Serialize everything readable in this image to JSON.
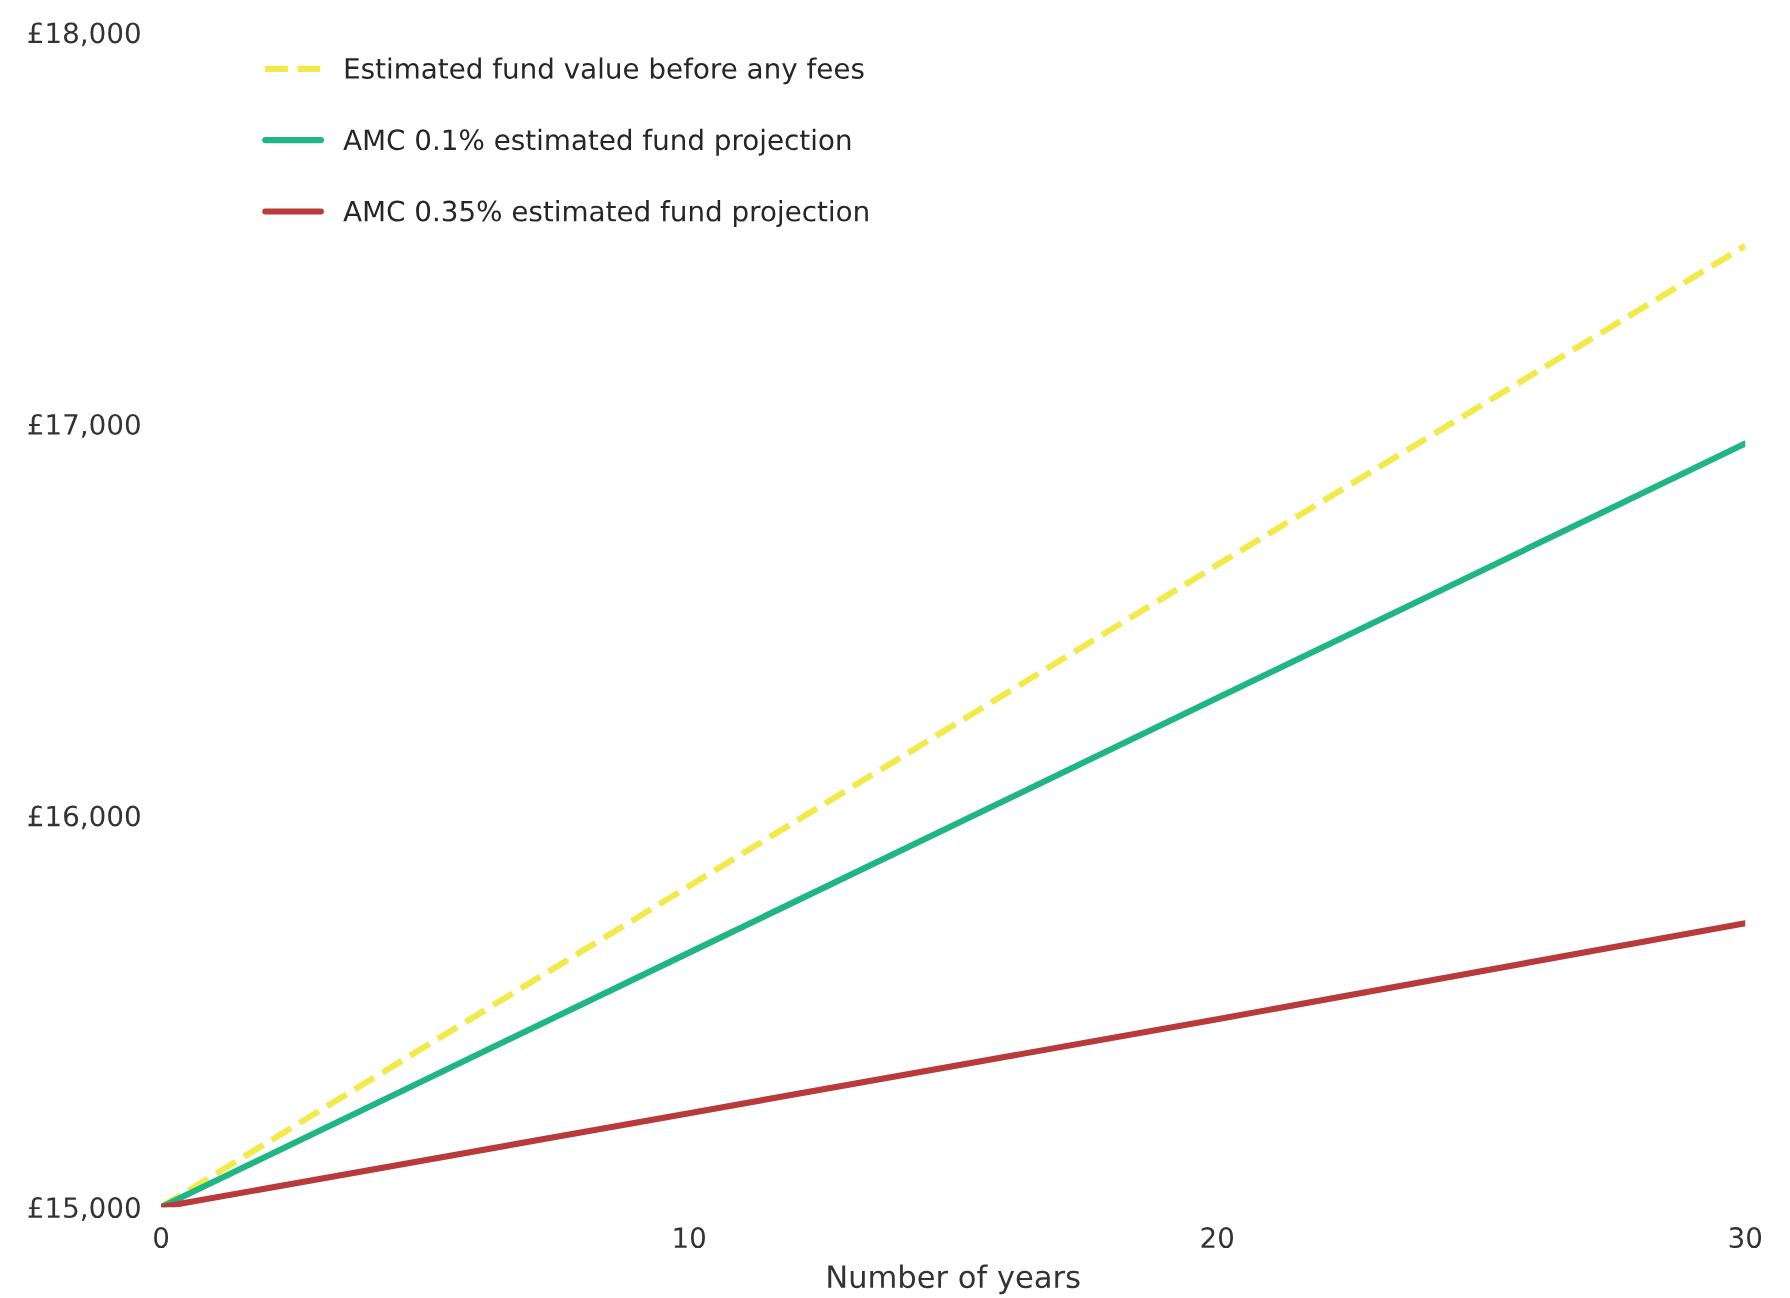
{
  "chart_data": {
    "type": "line",
    "xlabel": "Number of years",
    "x": [
      0,
      10,
      20,
      30
    ],
    "series": [
      {
        "name": "Estimated fund value before any fees",
        "color": "#f2ea4a",
        "line_style": "dashed",
        "values": [
          15000,
          15820,
          16640,
          17455
        ]
      },
      {
        "name": "AMC 0.1% estimated fund projection",
        "color": "#1fb584",
        "line_style": "solid",
        "values": [
          15000,
          15650,
          16300,
          16950
        ]
      },
      {
        "name": "AMC 0.35% estimated fund projection",
        "color": "#b83a3a",
        "line_style": "solid",
        "values": [
          15000,
          15240,
          15480,
          15725
        ]
      }
    ],
    "xlim": [
      0,
      30
    ],
    "xticks": [
      0,
      10,
      20,
      30
    ],
    "ylim": [
      15000,
      18000
    ],
    "yticks": [
      {
        "value": 15000,
        "label": "£15,000"
      },
      {
        "value": 16000,
        "label": "£16,000"
      },
      {
        "value": 17000,
        "label": "£17,000"
      },
      {
        "value": 18000,
        "label": "£18,000"
      }
    ],
    "legend": "top left",
    "grid": false
  }
}
